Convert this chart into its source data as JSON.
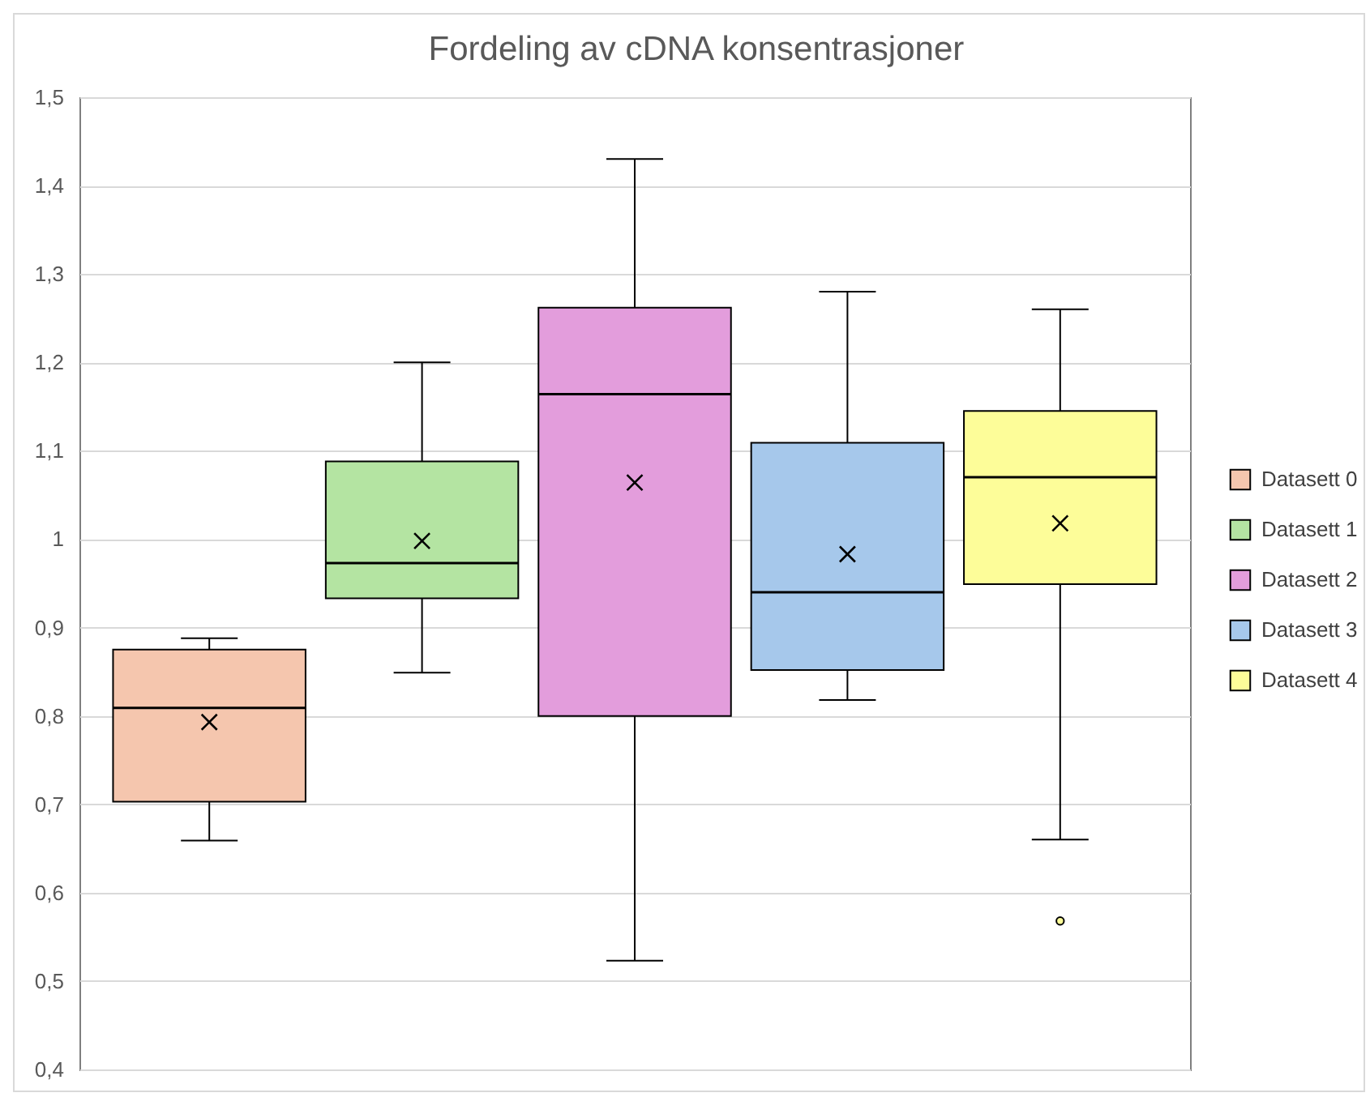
{
  "chart_data": {
    "type": "box",
    "title": "Fordeling av cDNA konsentrasjoner",
    "categories": [
      null
    ],
    "series": [
      {
        "name": "Datasett 0",
        "color": "#f5c6ae",
        "boxes": [
          {
            "low": 0.659,
            "q1": 0.703,
            "median": 0.809,
            "q3": 0.875,
            "high": 0.888,
            "mean": 0.793
          }
        ]
      },
      {
        "name": "Datasett 1",
        "color": "#b4e4a2",
        "boxes": [
          {
            "low": 0.849,
            "q1": 0.933,
            "median": 0.973,
            "q3": 1.088,
            "high": 1.2,
            "mean": 0.998
          }
        ]
      },
      {
        "name": "Datasett 2",
        "color": "#e39ddc",
        "boxes": [
          {
            "low": 0.523,
            "q1": 0.8,
            "median": 1.164,
            "q3": 1.262,
            "high": 1.43,
            "mean": 1.064
          }
        ]
      },
      {
        "name": "Datasett 3",
        "color": "#a6c8eb",
        "boxes": [
          {
            "low": 0.818,
            "q1": 0.852,
            "median": 0.94,
            "q3": 1.109,
            "high": 1.28,
            "mean": 0.983
          }
        ]
      },
      {
        "name": "Datasett 4",
        "color": "#fdfd99",
        "boxes": [
          {
            "low": 0.66,
            "q1": 0.949,
            "median": 1.07,
            "q3": 1.145,
            "high": 1.26,
            "mean": 1.018,
            "outliers": [
              0.568
            ]
          }
        ]
      }
    ],
    "ylim": [
      0.4,
      1.5
    ],
    "yticks": [
      {
        "value": 0.4,
        "label": "0,4"
      },
      {
        "value": 0.5,
        "label": "0,5"
      },
      {
        "value": 0.6,
        "label": "0,6"
      },
      {
        "value": 0.7,
        "label": "0,7"
      },
      {
        "value": 0.8,
        "label": "0,8"
      },
      {
        "value": 0.9,
        "label": "0,9"
      },
      1,
      {
        "value": 1.1,
        "label": "1,1"
      },
      {
        "value": 1.2,
        "label": "1,2"
      },
      {
        "value": 1.3,
        "label": "1,3"
      },
      {
        "value": 1.4,
        "label": "1,4"
      },
      {
        "value": 1.5,
        "label": "1,5"
      }
    ],
    "grid": "y",
    "legend": "right",
    "tick_labels": "y"
  }
}
